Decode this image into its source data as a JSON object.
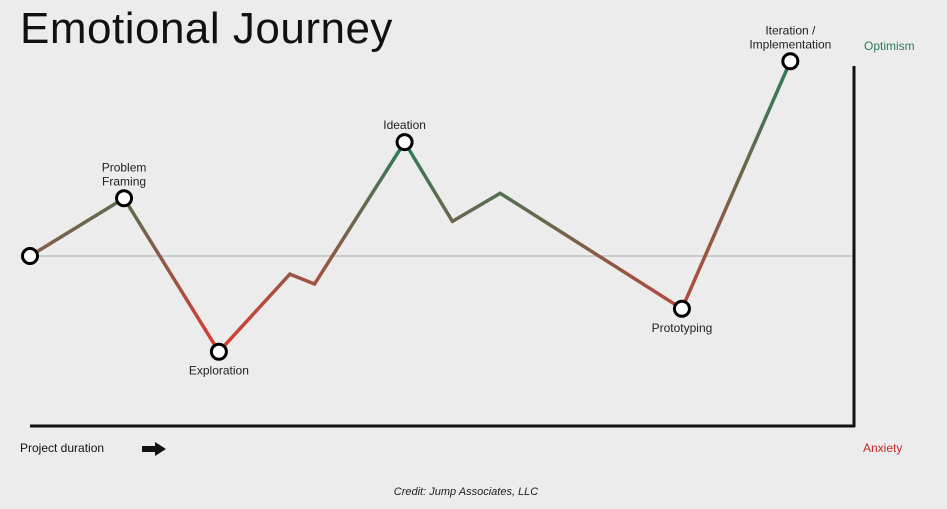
{
  "title": "Emotional Journey",
  "credit": "Credit: Jump Associates, LLC",
  "colors": {
    "optimism": "#2e7d57",
    "anxiety": "#e53935",
    "neutral_line": "#aaaaaa"
  },
  "chart_data": {
    "type": "line",
    "title": "Emotional Journey",
    "xlabel": "Project duration",
    "y_top_label": "Optimism",
    "y_bottom_label": "Anxiety",
    "ylim": [
      -1,
      1
    ],
    "baseline": 0,
    "points": [
      {
        "x": 0,
        "y": 0.0,
        "label": "",
        "marker": true
      },
      {
        "x": 0.118,
        "y": 0.35,
        "label": "Problem\nFraming",
        "marker": true
      },
      {
        "x": 0.237,
        "y": -0.58,
        "label": "Exploration",
        "marker": true
      },
      {
        "x": 0.326,
        "y": -0.11,
        "label": "",
        "marker": false
      },
      {
        "x": 0.357,
        "y": -0.17,
        "label": "",
        "marker": false
      },
      {
        "x": 0.47,
        "y": 0.69,
        "label": "Ideation",
        "marker": true
      },
      {
        "x": 0.53,
        "y": 0.21,
        "label": "",
        "marker": false
      },
      {
        "x": 0.59,
        "y": 0.38,
        "label": "",
        "marker": false
      },
      {
        "x": 0.818,
        "y": -0.32,
        "label": "Prototyping",
        "marker": true
      },
      {
        "x": 0.954,
        "y": 1.18,
        "label": "Iteration /\nImplementation",
        "marker": true
      }
    ]
  }
}
